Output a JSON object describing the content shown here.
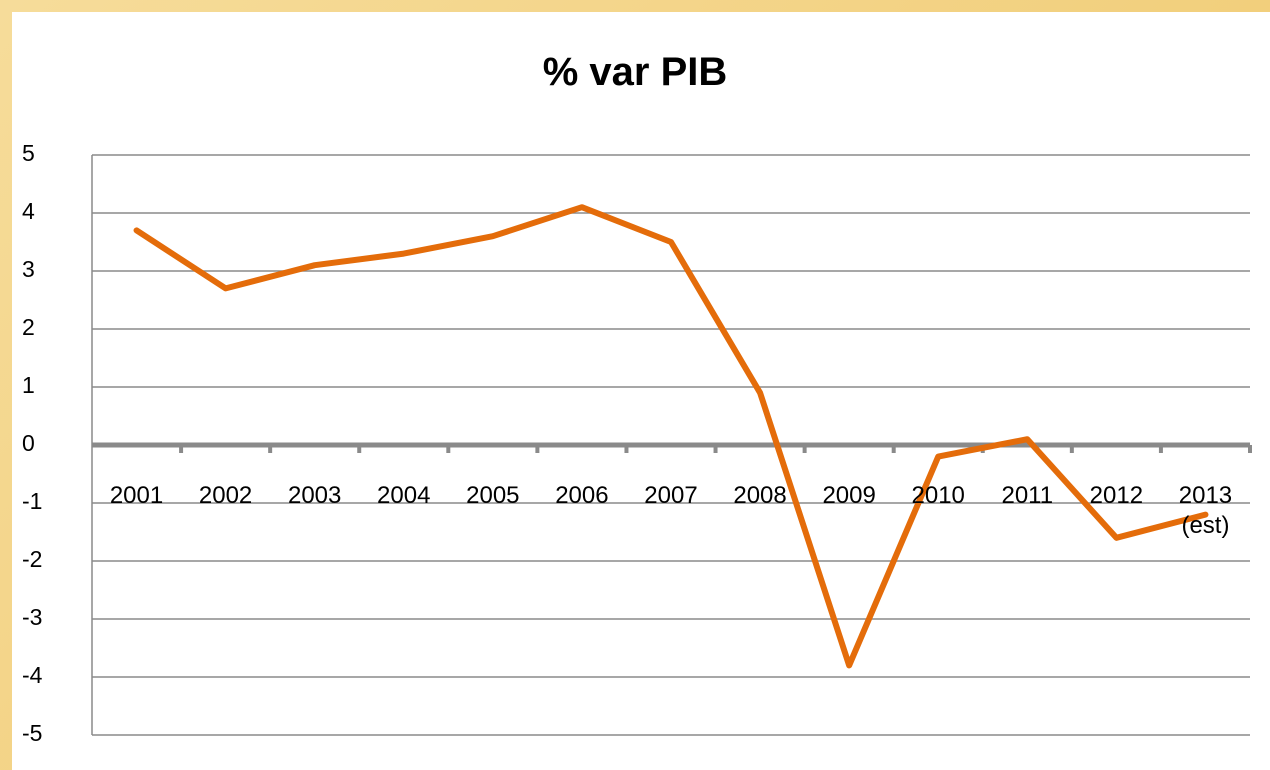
{
  "chart_data": {
    "type": "line",
    "title": "% var PIB",
    "categories": [
      "2001",
      "2002",
      "2003",
      "2004",
      "2005",
      "2006",
      "2007",
      "2008",
      "2009",
      "2010",
      "2011",
      "2012",
      "2013 (est)"
    ],
    "values": [
      3.7,
      2.7,
      3.1,
      3.3,
      3.6,
      4.1,
      3.5,
      0.9,
      -3.8,
      -0.2,
      0.1,
      -1.6,
      -1.2
    ],
    "color": "#e46c0a",
    "ylim": [
      -5,
      5
    ],
    "yticks": [
      5,
      4,
      3,
      2,
      1,
      0,
      -1,
      -2,
      -3,
      -4,
      -5
    ],
    "grid": true
  }
}
